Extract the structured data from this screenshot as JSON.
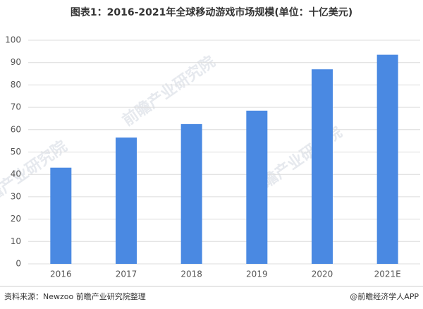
{
  "chart_data": {
    "type": "bar",
    "title": "图表1：2016-2021年全球移动游戏市场规模(单位：十亿美元)",
    "categories": [
      "2016",
      "2017",
      "2018",
      "2019",
      "2020",
      "2021E"
    ],
    "values": [
      43,
      56.5,
      62.5,
      68.5,
      87,
      93.5
    ],
    "color": "#4a89e2",
    "ylim": [
      0,
      100
    ],
    "yticks": [
      0,
      10,
      20,
      30,
      40,
      50,
      60,
      70,
      80,
      90,
      100
    ],
    "grid": true,
    "watermark": "前瞻产业研究院",
    "source": "资料来源：Newzoo 前瞻产业研究院整理",
    "credit": "@前瞻经济学人APP"
  }
}
